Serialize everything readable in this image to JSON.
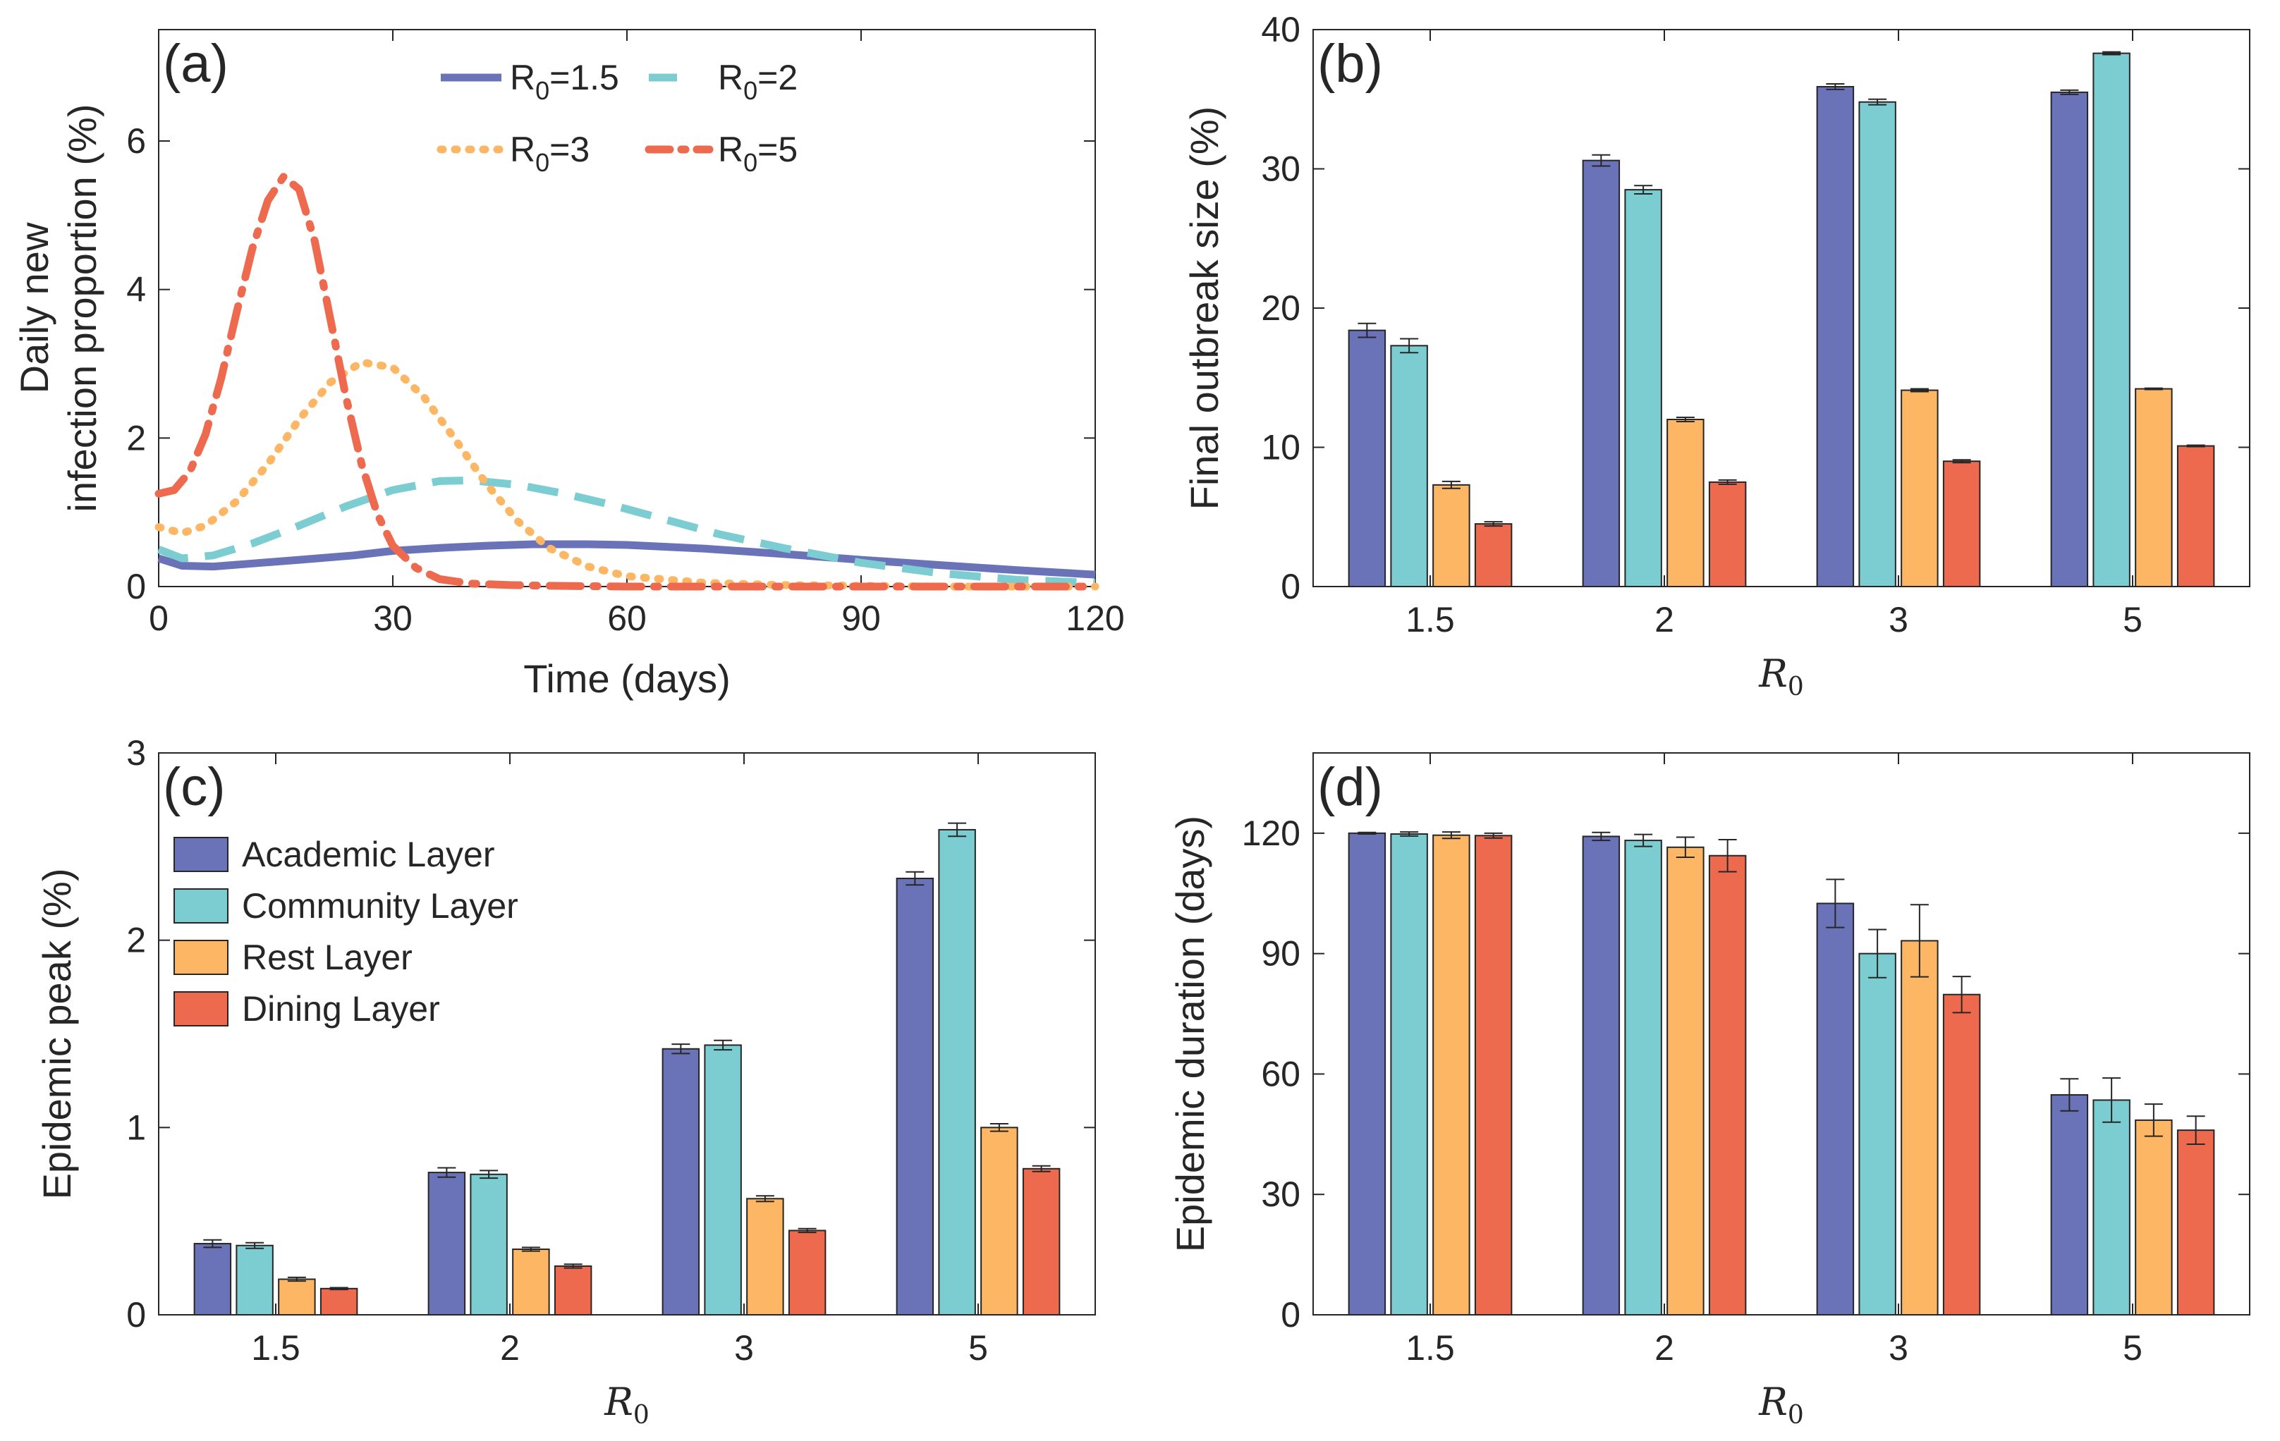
{
  "figure_title": "",
  "colors": {
    "academic": "#6b73b8",
    "community": "#7ccdd1",
    "rest": "#fcb664",
    "dining": "#ee6a4f",
    "axis": "#262626"
  },
  "chart_data": [
    {
      "id": "a",
      "type": "line",
      "panel_label": "(a)",
      "xlabel": "Time (days)",
      "ylabel_line1": "Daily new",
      "ylabel_line2": "infection proportion (%)",
      "xlim": [
        0,
        120
      ],
      "ylim": [
        0,
        7.5
      ],
      "xticks": [
        0,
        30,
        60,
        90,
        120
      ],
      "yticks": [
        0,
        2,
        4,
        6
      ],
      "legend_position": "top",
      "series": [
        {
          "name": "R0=1.5",
          "label_main": "R",
          "label_sub": "0",
          "label_rest": "=1.5",
          "color": "#6b73b8",
          "style": "solid",
          "x": [
            0,
            3,
            7,
            12,
            18,
            25,
            30,
            36,
            42,
            48,
            55,
            60,
            70,
            80,
            90,
            100,
            110,
            120
          ],
          "y": [
            0.38,
            0.28,
            0.27,
            0.31,
            0.36,
            0.42,
            0.48,
            0.52,
            0.55,
            0.57,
            0.57,
            0.56,
            0.51,
            0.44,
            0.36,
            0.29,
            0.22,
            0.16
          ]
        },
        {
          "name": "R0=2",
          "label_main": "R",
          "label_sub": "0",
          "label_rest": "=2",
          "color": "#7ccdd1",
          "style": "dashed",
          "x": [
            0,
            3,
            7,
            12,
            18,
            24,
            30,
            36,
            40,
            46,
            52,
            58,
            65,
            72,
            80,
            90,
            100,
            110,
            120
          ],
          "y": [
            0.5,
            0.38,
            0.42,
            0.58,
            0.82,
            1.08,
            1.3,
            1.42,
            1.43,
            1.37,
            1.25,
            1.1,
            0.9,
            0.7,
            0.52,
            0.32,
            0.18,
            0.09,
            0.05
          ]
        },
        {
          "name": "R0=3",
          "label_main": "R",
          "label_sub": "0",
          "label_rest": "=3",
          "color": "#fcb664",
          "style": "dotted",
          "x": [
            0,
            3,
            6,
            10,
            14,
            18,
            22,
            26,
            30,
            34,
            38,
            42,
            46,
            50,
            55,
            60,
            70,
            80,
            90,
            100,
            120
          ],
          "y": [
            0.8,
            0.72,
            0.82,
            1.15,
            1.65,
            2.25,
            2.75,
            3.02,
            2.95,
            2.55,
            1.98,
            1.38,
            0.88,
            0.52,
            0.27,
            0.14,
            0.05,
            0.02,
            0.01,
            0.0,
            0.0
          ]
        },
        {
          "name": "R0=5",
          "label_main": "R",
          "label_sub": "0",
          "label_rest": "=5",
          "color": "#ee6a4f",
          "style": "dashdot",
          "x": [
            0,
            2,
            4,
            6,
            8,
            10,
            12,
            14,
            16,
            18,
            20,
            22,
            24,
            26,
            28,
            30,
            33,
            36,
            40,
            45,
            50,
            60,
            120
          ],
          "y": [
            1.25,
            1.3,
            1.55,
            2.05,
            2.8,
            3.7,
            4.55,
            5.2,
            5.52,
            5.35,
            4.65,
            3.6,
            2.55,
            1.65,
            0.98,
            0.55,
            0.25,
            0.1,
            0.04,
            0.02,
            0.01,
            0.0,
            0.0
          ]
        }
      ]
    },
    {
      "id": "b",
      "type": "bar",
      "panel_label": "(b)",
      "ylabel": "Final outbreak size (%)",
      "xlabel_main": "R",
      "xlabel_sub": "0",
      "categories": [
        "1.5",
        "2",
        "3",
        "5"
      ],
      "ylim": [
        0,
        40
      ],
      "yticks": [
        0,
        10,
        20,
        30,
        40
      ],
      "series": [
        {
          "name": "Academic Layer",
          "values": [
            18.4,
            30.6,
            35.9,
            35.5
          ],
          "errors": [
            0.5,
            0.4,
            0.2,
            0.15
          ]
        },
        {
          "name": "Community Layer",
          "values": [
            17.3,
            28.5,
            34.8,
            38.3
          ],
          "errors": [
            0.5,
            0.3,
            0.2,
            0.1
          ]
        },
        {
          "name": "Rest Layer",
          "values": [
            7.3,
            12.0,
            14.1,
            14.2
          ],
          "errors": [
            0.25,
            0.15,
            0.1,
            0.05
          ]
        },
        {
          "name": "Dining Layer",
          "values": [
            4.5,
            7.5,
            9.0,
            10.1
          ],
          "errors": [
            0.15,
            0.15,
            0.1,
            0.05
          ]
        }
      ]
    },
    {
      "id": "c",
      "type": "bar",
      "panel_label": "(c)",
      "ylabel": "Epidemic peak (%)",
      "xlabel_main": "R",
      "xlabel_sub": "0",
      "categories": [
        "1.5",
        "2",
        "3",
        "5"
      ],
      "ylim": [
        0,
        3
      ],
      "yticks": [
        0,
        1,
        2,
        3
      ],
      "legend_position": "top-left",
      "series": [
        {
          "name": "Academic Layer",
          "values": [
            0.38,
            0.76,
            1.42,
            2.33
          ],
          "errors": [
            0.02,
            0.025,
            0.025,
            0.035
          ]
        },
        {
          "name": "Community Layer",
          "values": [
            0.37,
            0.75,
            1.44,
            2.59
          ],
          "errors": [
            0.015,
            0.02,
            0.025,
            0.035
          ]
        },
        {
          "name": "Rest Layer",
          "values": [
            0.19,
            0.35,
            0.62,
            1.0
          ],
          "errors": [
            0.01,
            0.01,
            0.015,
            0.02
          ]
        },
        {
          "name": "Dining Layer",
          "values": [
            0.14,
            0.26,
            0.45,
            0.78
          ],
          "errors": [
            0.005,
            0.01,
            0.01,
            0.015
          ]
        }
      ]
    },
    {
      "id": "d",
      "type": "bar",
      "panel_label": "(d)",
      "ylabel": "Epidemic duration (days)",
      "xlabel_main": "R",
      "xlabel_sub": "0",
      "categories": [
        "1.5",
        "2",
        "3",
        "5"
      ],
      "ylim": [
        0,
        140
      ],
      "yticks": [
        0,
        30,
        60,
        90,
        120
      ],
      "series": [
        {
          "name": "Academic Layer",
          "values": [
            120,
            119.2,
            102.5,
            54.8
          ],
          "errors": [
            0.2,
            1.0,
            6.0,
            4.0
          ]
        },
        {
          "name": "Community Layer",
          "values": [
            119.8,
            118.2,
            90.0,
            53.5
          ],
          "errors": [
            0.5,
            1.5,
            6.0,
            5.5
          ]
        },
        {
          "name": "Rest Layer",
          "values": [
            119.5,
            116.5,
            93.2,
            48.5
          ],
          "errors": [
            0.8,
            2.5,
            9.0,
            4.0
          ]
        },
        {
          "name": "Dining Layer",
          "values": [
            119.4,
            114.4,
            79.8,
            46.0
          ],
          "errors": [
            0.6,
            4.0,
            4.5,
            3.5
          ]
        }
      ]
    }
  ]
}
